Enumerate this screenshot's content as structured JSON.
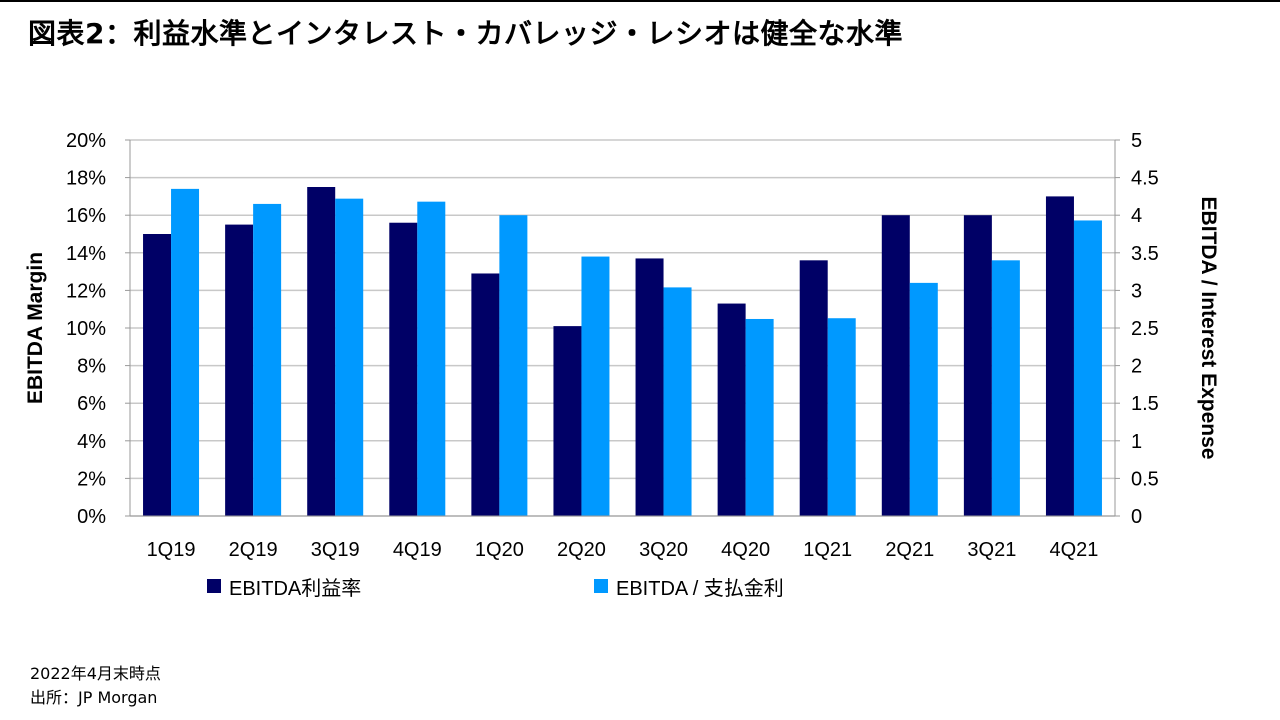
{
  "title": "図表2：利益水準とインタレスト・カバレッジ・レシオは健全な水準",
  "footnotes": {
    "date": "2022年4月末時点",
    "source": "出所：JP Morgan"
  },
  "chart_data": {
    "type": "bar",
    "categories": [
      "1Q19",
      "2Q19",
      "3Q19",
      "4Q19",
      "1Q20",
      "2Q20",
      "3Q20",
      "4Q20",
      "1Q21",
      "2Q21",
      "3Q21",
      "4Q21"
    ],
    "series": [
      {
        "name": "EBITDA利益率",
        "axis": "left",
        "color": "#000066",
        "values": [
          15.0,
          15.5,
          17.5,
          15.6,
          12.9,
          10.1,
          13.7,
          11.3,
          13.6,
          16.0,
          16.0,
          17.0
        ]
      },
      {
        "name": "EBITDA / 支払金利",
        "axis": "right",
        "color": "#0099FF",
        "values": [
          4.35,
          4.15,
          4.22,
          4.18,
          4.0,
          3.45,
          3.04,
          2.62,
          2.63,
          3.1,
          3.4,
          3.93
        ]
      }
    ],
    "y_left": {
      "label": "EBITDA Margin",
      "range": [
        0,
        20
      ],
      "ticks": [
        "0%",
        "2%",
        "4%",
        "6%",
        "8%",
        "10%",
        "12%",
        "14%",
        "16%",
        "18%",
        "20%"
      ]
    },
    "y_right": {
      "label": "EBITDA / Interest Expense",
      "range": [
        0,
        5
      ],
      "ticks": [
        "0",
        "0.5",
        "1",
        "1.5",
        "2",
        "2.5",
        "3",
        "3.5",
        "4",
        "4.5",
        "5"
      ]
    },
    "grid": true,
    "legend_position": "bottom-left"
  }
}
